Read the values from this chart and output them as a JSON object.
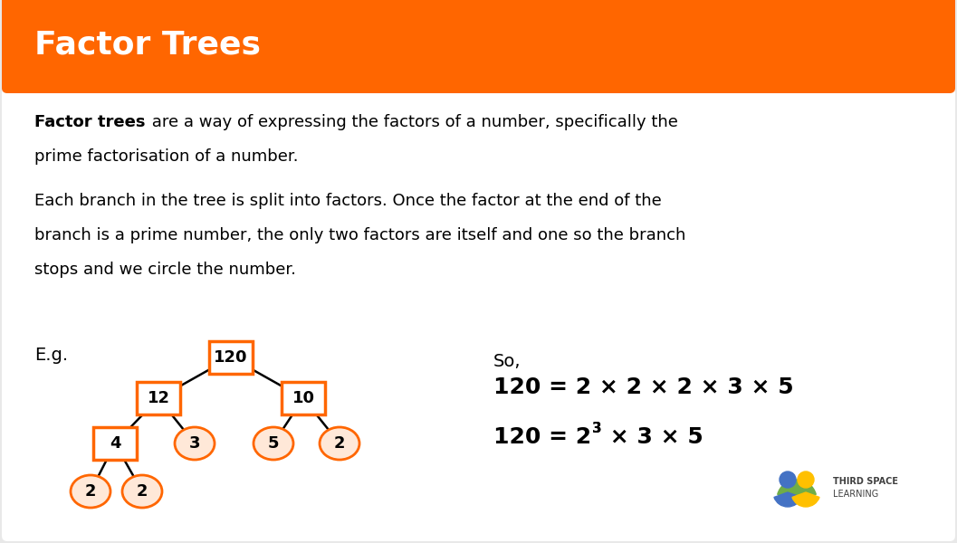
{
  "title": "Factor Trees",
  "title_bg": "#FF6600",
  "title_color": "#FFFFFF",
  "title_fontsize": 26,
  "bg_color": "#E8E8E8",
  "body_bg": "#FFFFFF",
  "orange": "#FF6600",
  "orange_light": "#FFE8D8",
  "text_color": "#000000",
  "so_text": "So,",
  "eq1": "120 = 2 × 2 × 2 × 3 × 5",
  "eq2_prefix": "120 = 2",
  "eq2_sup": "3",
  "eq2_suffix": " × 3 × 5",
  "logo_text1": "THIRD SPACE",
  "logo_text2": "LEARNING"
}
